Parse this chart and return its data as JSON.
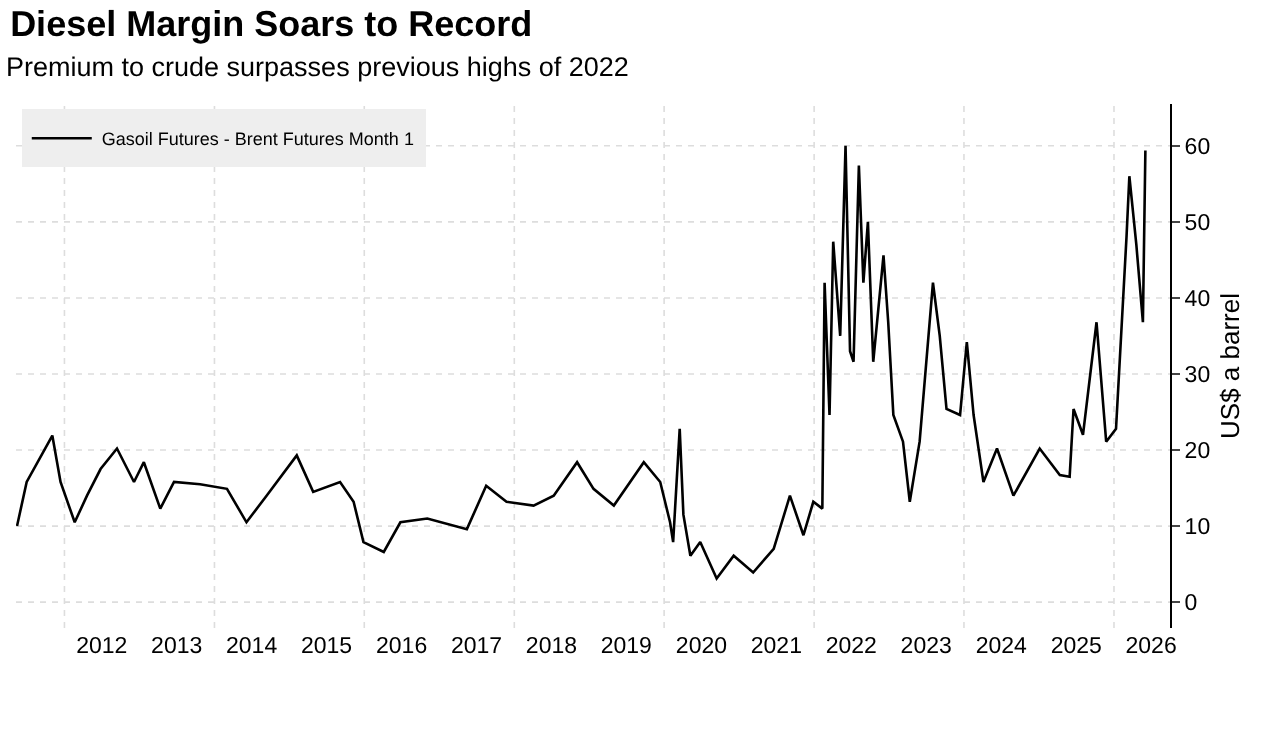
{
  "chart_data": {
    "type": "line",
    "title": "Diesel Margin Soars to Record",
    "subtitle": "Premium to crude surpasses previous highs of 2022",
    "ylabel": "US$ a barrel",
    "x": [
      "2011-05-15",
      "2011-07-01",
      "2011-11-03",
      "2011-12-13",
      "2012-02-20",
      "2012-04-20",
      "2012-06-25",
      "2012-09-13",
      "2012-12-05",
      "2013-01-22",
      "2013-04-12",
      "2013-06-18",
      "2013-10-23",
      "2014-03-03",
      "2014-06-06",
      "2014-09-12",
      "2015-02-06",
      "2015-04-27",
      "2015-09-05",
      "2015-11-10",
      "2015-12-28",
      "2016-04-05",
      "2016-06-25",
      "2016-11-03",
      "2017-05-15",
      "2017-08-17",
      "2017-11-24",
      "2018-04-05",
      "2018-07-12",
      "2018-11-03",
      "2019-01-22",
      "2019-05-01",
      "2019-09-24",
      "2019-12-13",
      "2020-01-30",
      "2020-02-14",
      "2020-03-17",
      "2020-04-04",
      "2020-05-08",
      "2020-06-25",
      "2020-09-13",
      "2020-12-05",
      "2021-03-10",
      "2021-06-18",
      "2021-09-05",
      "2021-11-10",
      "2021-12-28",
      "2022-02-10",
      "2022-02-21",
      "2022-03-17",
      "2022-04-04",
      "2022-05-08",
      "2022-06-03",
      "2022-06-25",
      "2022-07-12",
      "2022-08-07",
      "2022-08-29",
      "2022-09-20",
      "2022-10-16",
      "2022-12-05",
      "2022-12-28",
      "2023-01-22",
      "2023-03-10",
      "2023-04-12",
      "2023-05-30",
      "2023-08-03",
      "2023-09-05",
      "2023-10-08",
      "2023-12-13",
      "2024-01-15",
      "2024-02-17",
      "2024-04-05",
      "2024-06-10",
      "2024-08-29",
      "2025-01-04",
      "2025-04-12",
      "2025-05-30",
      "2025-06-18",
      "2025-08-03",
      "2025-10-08",
      "2025-11-24",
      "2026-01-11",
      "2026-03-03",
      "2026-03-17",
      "2026-04-20",
      "2026-05-22",
      "2026-06-03"
    ],
    "series": [
      {
        "name": "Gasoil Futures - Brent Futures Month 1",
        "color": "#000000",
        "values": [
          10,
          15.8,
          21.9,
          15.8,
          10.5,
          14,
          17.5,
          20.2,
          15.8,
          18.4,
          12.3,
          15.8,
          15.5,
          14.9,
          10.5,
          14,
          19.3,
          14.5,
          15.8,
          13.2,
          7.9,
          6.6,
          10.5,
          11,
          9.6,
          15.3,
          13.2,
          12.7,
          14,
          18.4,
          14.9,
          12.7,
          18.4,
          15.8,
          10.5,
          7.9,
          22.8,
          11.5,
          6.1,
          7.9,
          3.1,
          6.1,
          3.9,
          7,
          14,
          8.8,
          13.2,
          12.3,
          42,
          24.6,
          47.4,
          35,
          60,
          33,
          31.6,
          57.4,
          42,
          50,
          31.6,
          45.6,
          36.8,
          24.6,
          21.1,
          13.2,
          21.1,
          42,
          35,
          25.4,
          24.6,
          34.2,
          24.6,
          15.8,
          20.2,
          14,
          20.2,
          16.7,
          16.5,
          25.4,
          22,
          36.8,
          21.1,
          22.8,
          48,
          56,
          47,
          36.8,
          59.4
        ]
      }
    ],
    "xlim": [
      "2011-05-10",
      "2026-10-01"
    ],
    "xticks": [
      {
        "value": "2012-01-01",
        "label": null
      },
      {
        "value": "2012-07-01",
        "label": "2012"
      },
      {
        "value": "2013-07-01",
        "label": "2013"
      },
      {
        "value": "2014-01-01",
        "label": null
      },
      {
        "value": "2014-07-01",
        "label": "2014"
      },
      {
        "value": "2015-07-01",
        "label": "2015"
      },
      {
        "value": "2016-01-01",
        "label": null
      },
      {
        "value": "2016-07-01",
        "label": "2016"
      },
      {
        "value": "2017-07-01",
        "label": "2017"
      },
      {
        "value": "2018-01-01",
        "label": null
      },
      {
        "value": "2018-07-01",
        "label": "2018"
      },
      {
        "value": "2019-07-01",
        "label": "2019"
      },
      {
        "value": "2020-01-01",
        "label": null
      },
      {
        "value": "2020-07-01",
        "label": "2020"
      },
      {
        "value": "2021-07-01",
        "label": "2021"
      },
      {
        "value": "2022-01-01",
        "label": null
      },
      {
        "value": "2022-07-01",
        "label": "2022"
      },
      {
        "value": "2023-07-01",
        "label": "2023"
      },
      {
        "value": "2024-01-01",
        "label": null
      },
      {
        "value": "2024-07-01",
        "label": "2024"
      },
      {
        "value": "2025-07-01",
        "label": "2025"
      },
      {
        "value": "2026-01-01",
        "label": null
      },
      {
        "value": "2026-07-01",
        "label": "2026"
      }
    ],
    "ylim": [
      -3.4,
      65.5
    ],
    "yticks": [
      0,
      10,
      20,
      30,
      40,
      50,
      60
    ],
    "grid": true,
    "legend": "top left",
    "line_style": "solid"
  }
}
